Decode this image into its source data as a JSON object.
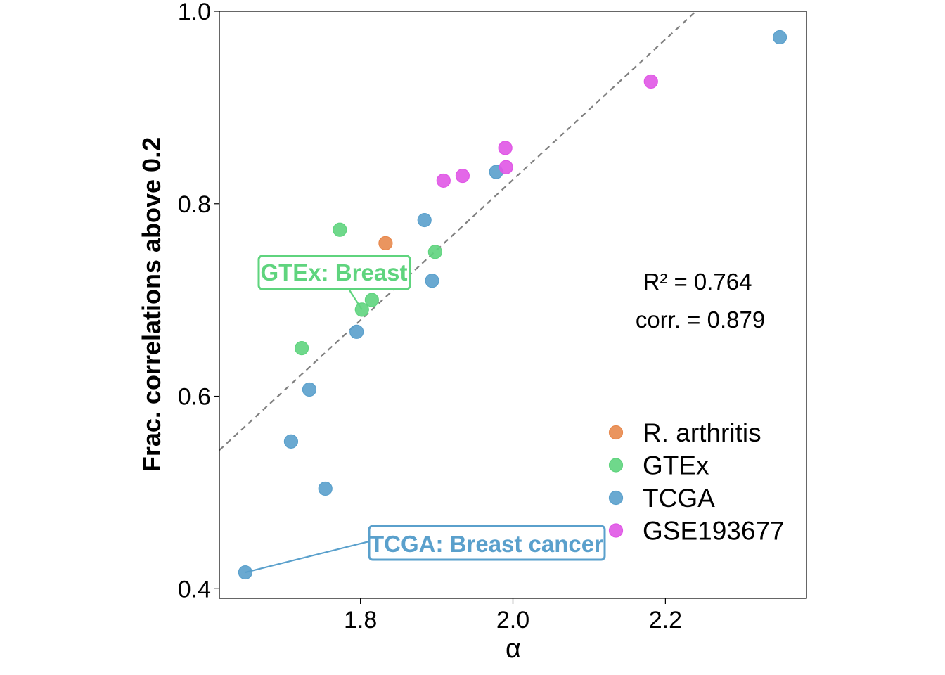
{
  "chart_data": {
    "type": "scatter",
    "xlabel": "α",
    "ylabel": "Frac. correlations above 0.2",
    "xlim": [
      1.615,
      2.385
    ],
    "ylim": [
      0.39,
      1.0
    ],
    "xticks": [
      1.8,
      2.0,
      2.2
    ],
    "xtick_labels": [
      "1.8",
      "2.0",
      "2.2"
    ],
    "yticks": [
      0.4,
      0.6,
      0.8,
      1.0
    ],
    "ytick_labels": [
      "0.4",
      "0.6",
      "0.8",
      "1.0"
    ],
    "grid": false,
    "legend_position": "lower-right",
    "fit_line": {
      "style": "dashed",
      "color": "#808080",
      "points": [
        [
          1.615,
          0.544
        ],
        [
          2.24,
          1.0
        ]
      ]
    },
    "stats": [
      "R² = 0.764",
      "corr. = 0.879"
    ],
    "series": [
      {
        "name": "R. arthritis",
        "color": "#e8894e",
        "points": [
          [
            1.833,
            0.759
          ]
        ]
      },
      {
        "name": "GTEx",
        "color": "#5fd47e",
        "points": [
          [
            1.773,
            0.773
          ],
          [
            1.898,
            0.75
          ],
          [
            1.815,
            0.7
          ],
          [
            1.802,
            0.69
          ],
          [
            1.723,
            0.65
          ]
        ]
      },
      {
        "name": "TCGA",
        "color": "#5aa0cc",
        "points": [
          [
            2.35,
            0.973
          ],
          [
            1.978,
            0.833
          ],
          [
            1.884,
            0.783
          ],
          [
            1.894,
            0.72
          ],
          [
            1.795,
            0.667
          ],
          [
            1.733,
            0.607
          ],
          [
            1.709,
            0.553
          ],
          [
            1.754,
            0.504
          ],
          [
            1.649,
            0.417
          ]
        ]
      },
      {
        "name": "GSE193677",
        "color": "#e056e6",
        "points": [
          [
            2.181,
            0.927
          ],
          [
            1.99,
            0.858
          ],
          [
            1.991,
            0.838
          ],
          [
            1.934,
            0.829
          ],
          [
            1.909,
            0.824
          ]
        ]
      }
    ],
    "annotations": [
      {
        "text": "GTEx: Breast",
        "color": "#5fd47e",
        "point": [
          1.802,
          0.69
        ]
      },
      {
        "text": "TCGA: Breast cancer",
        "color": "#5aa0cc",
        "point": [
          1.649,
          0.417
        ]
      }
    ]
  }
}
